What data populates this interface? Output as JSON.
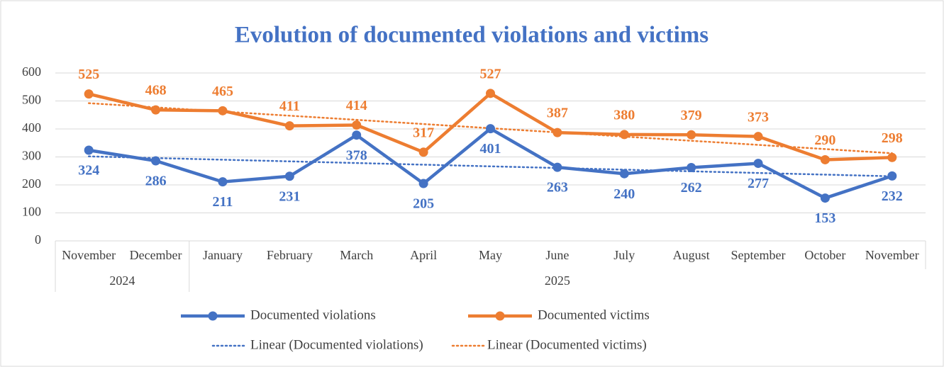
{
  "chart_data": {
    "type": "line",
    "title": "Evolution of documented violations and victims",
    "categories": [
      "November",
      "December",
      "January",
      "February",
      "March",
      "April",
      "May",
      "June",
      "July",
      "August",
      "September",
      "October",
      "November"
    ],
    "x_groups": [
      {
        "label": "2024",
        "count": 2
      },
      {
        "label": "2025",
        "count": 11
      }
    ],
    "series": [
      {
        "name": "Documented violations",
        "color": "#4472c4",
        "label_position": "below",
        "values": [
          324,
          286,
          211,
          231,
          378,
          205,
          401,
          263,
          240,
          262,
          277,
          153,
          232
        ],
        "trendline": {
          "name": "Linear (Documented violations)",
          "kind": "linear",
          "style": "dotted"
        }
      },
      {
        "name": "Documented victims",
        "color": "#ed7d31",
        "label_position": "above",
        "values": [
          525,
          468,
          465,
          411,
          414,
          317,
          527,
          387,
          380,
          379,
          373,
          290,
          298
        ],
        "trendline": {
          "name": "Linear (Documented victims)",
          "kind": "linear",
          "style": "dotted"
        }
      }
    ],
    "ylim": [
      0,
      600
    ],
    "yticks": [
      0,
      100,
      200,
      300,
      400,
      500,
      600
    ],
    "grid": true,
    "legend": "bottom"
  }
}
